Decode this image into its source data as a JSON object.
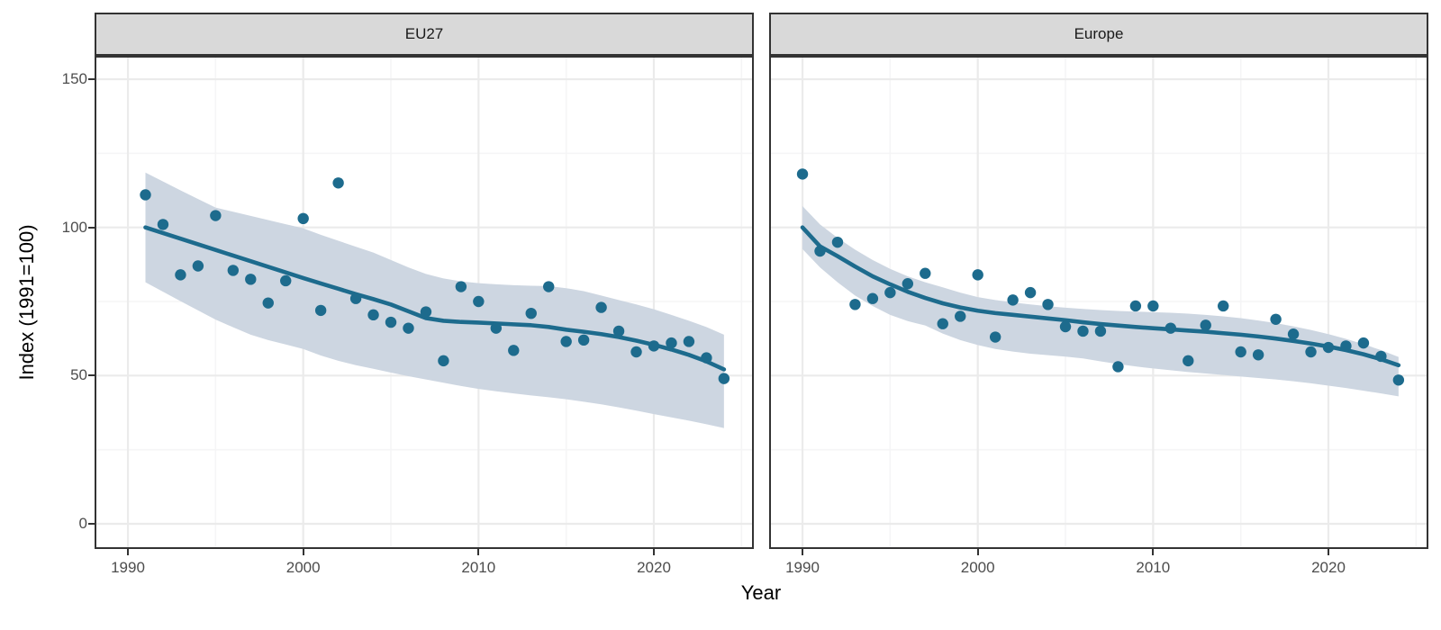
{
  "figure": {
    "xlabel": "Year",
    "ylabel": "Index (1991=100)"
  },
  "chart_data": {
    "type": "scatter",
    "title": "",
    "xlabel": "Year",
    "ylabel": "Index (1991=100)",
    "legend": "none",
    "grid": "on",
    "x_tick_values": [
      1990,
      2000,
      2010,
      2020
    ],
    "x_tick_labels": [
      "1990",
      "2000",
      "2010",
      "2020"
    ],
    "x_minor": [
      1995,
      2005,
      2015,
      2025
    ],
    "y_tick_values": [
      0,
      50,
      100,
      150
    ],
    "y_tick_labels": [
      "0",
      "50",
      "100",
      "150"
    ],
    "y_minor": [
      25,
      75,
      125
    ],
    "x_domain": [
      1988.2,
      2025.6
    ],
    "y_domain": [
      -7.9,
      157.3
    ],
    "colors": {
      "accent": "#1d6b8d",
      "band": "#cdd6e1",
      "strip_bg": "#d9d9d9",
      "panel_border": "#333333",
      "grid_major": "#ebebeb",
      "grid_minor": "#f5f5f6",
      "axis_text": "#4d4d4d"
    },
    "facets": [
      {
        "label": "EU27",
        "years": [
          1991,
          1992,
          1993,
          1994,
          1995,
          1996,
          1997,
          1998,
          1999,
          2000,
          2001,
          2002,
          2003,
          2004,
          2005,
          2006,
          2007,
          2008,
          2009,
          2010,
          2011,
          2012,
          2013,
          2014,
          2015,
          2016,
          2017,
          2018,
          2019,
          2020,
          2021,
          2022,
          2023,
          2024
        ],
        "values": [
          111,
          101,
          84,
          87,
          104,
          85.5,
          82.5,
          74.5,
          82,
          103,
          72,
          115,
          76,
          70.5,
          68,
          66,
          71.5,
          55,
          80,
          75,
          66,
          58.5,
          71,
          80,
          61.5,
          62,
          73,
          65,
          58,
          60,
          61,
          61.5,
          56,
          49
        ],
        "trend": [
          100,
          98.1,
          96.2,
          94.3,
          92.4,
          90.5,
          88.6,
          86.7,
          84.8,
          82.9,
          81.1,
          79.3,
          77.5,
          75.8,
          74,
          71.7,
          69.4,
          68.5,
          68.1,
          67.9,
          67.6,
          67.3,
          67,
          66.4,
          65.5,
          64.8,
          64,
          63,
          61.8,
          60.4,
          58.8,
          57,
          54.8,
          52.1
        ],
        "band_upper": [
          118.5,
          115.5,
          112.5,
          109.6,
          106.7,
          105.3,
          103.9,
          102.5,
          101.1,
          99.7,
          97.5,
          95.5,
          93.5,
          91.5,
          89,
          86.5,
          84.3,
          82.8,
          81.8,
          81.2,
          80.8,
          80.5,
          80.3,
          80.2,
          79.5,
          78.5,
          77,
          75.5,
          74,
          72.4,
          70.5,
          68.5,
          66.4,
          63.8
        ],
        "band_lower": [
          81.5,
          78.3,
          75.1,
          72,
          68.9,
          66.3,
          63.8,
          62,
          60.5,
          59,
          56.8,
          55,
          53.5,
          52.3,
          51,
          49.8,
          48.7,
          47.6,
          46.5,
          45.5,
          44.7,
          44,
          43.3,
          42.7,
          42,
          41.2,
          40.3,
          39.3,
          38.2,
          37,
          35.9,
          34.8,
          33.6,
          32.3
        ]
      },
      {
        "label": "Europe",
        "years": [
          1990,
          1991,
          1992,
          1993,
          1994,
          1995,
          1996,
          1997,
          1998,
          1999,
          2000,
          2001,
          2002,
          2003,
          2004,
          2005,
          2006,
          2007,
          2008,
          2009,
          2010,
          2011,
          2012,
          2013,
          2014,
          2015,
          2016,
          2017,
          2018,
          2019,
          2020,
          2021,
          2022,
          2023,
          2024
        ],
        "values": [
          118,
          92,
          95,
          74,
          76,
          78,
          81,
          84.5,
          67.5,
          70,
          84,
          63,
          75.5,
          78,
          74,
          66.5,
          65,
          65,
          53,
          73.5,
          73.5,
          66,
          55,
          67,
          73.5,
          58,
          57,
          69,
          64,
          58,
          59.5,
          60,
          61,
          56.5,
          48.5
        ],
        "trend": [
          100,
          93.6,
          90.3,
          86.8,
          83.5,
          80.8,
          78.3,
          76.2,
          74.4,
          73,
          71.9,
          71.1,
          70.5,
          69.9,
          69.3,
          68.7,
          68,
          67.4,
          66.9,
          66.4,
          66,
          65.6,
          65.2,
          64.8,
          64.3,
          63.8,
          63.2,
          62.5,
          61.7,
          60.8,
          59.8,
          58.6,
          57.2,
          55.5,
          53.5
        ],
        "band_upper": [
          107.2,
          101,
          96.5,
          92.5,
          89,
          86,
          83.5,
          81.5,
          79.8,
          78,
          76.5,
          75.5,
          74.7,
          74,
          73.4,
          72.9,
          72.5,
          72.1,
          71.8,
          71.6,
          71.4,
          71.2,
          70.9,
          70.5,
          70,
          69.4,
          68.6,
          67.7,
          66.6,
          65.4,
          64,
          62.4,
          60.6,
          58.6,
          56.3
        ],
        "band_lower": [
          92.7,
          86.5,
          81.5,
          77,
          73.5,
          70.5,
          68.4,
          66.9,
          64.2,
          62,
          60.3,
          59,
          58.1,
          57.4,
          56.9,
          56.4,
          55.8,
          54.8,
          53.9,
          53.1,
          52.4,
          51.8,
          51.2,
          50.7,
          50.2,
          49.7,
          49.2,
          48.7,
          48.1,
          47.4,
          46.6,
          45.8,
          44.9,
          44,
          43
        ]
      }
    ]
  }
}
